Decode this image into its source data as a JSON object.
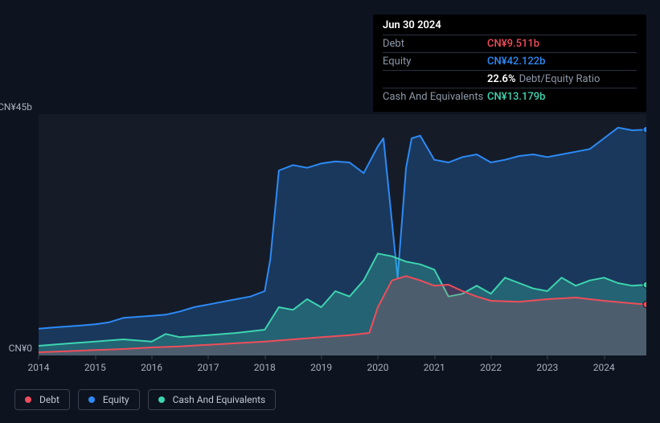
{
  "tooltip": {
    "date": "Jun 30 2024",
    "rows": [
      {
        "label": "Debt",
        "value": "CN¥9.511b",
        "color": "#ef4d5a"
      },
      {
        "label": "Equity",
        "value": "CN¥42.122b",
        "color": "#2d8af6"
      },
      {
        "ratio_value": "22.6%",
        "ratio_label": "Debt/Equity Ratio"
      },
      {
        "label": "Cash And Equivalents",
        "value": "CN¥13.179b",
        "color": "#3ed4b0"
      }
    ]
  },
  "chart": {
    "type": "area",
    "background_color": "#151c28",
    "page_background": "#0d1420",
    "y_axis": {
      "min": 0,
      "max": 45,
      "unit": "CN¥",
      "suffix": "b",
      "top_label": "CN¥45b",
      "bot_label": "CN¥0",
      "label_fontsize": 12,
      "label_color": "#a8b0bd"
    },
    "x_axis": {
      "min": 2014,
      "max": 2024.75,
      "ticks": [
        2014,
        2015,
        2016,
        2017,
        2018,
        2019,
        2020,
        2021,
        2022,
        2023,
        2024
      ],
      "label_fontsize": 12,
      "label_color": "#a8b0bd"
    },
    "series": [
      {
        "name": "Equity",
        "color": "#2d8af6",
        "fill_opacity": 0.25,
        "line_width": 2,
        "data": [
          [
            2014.0,
            5.0
          ],
          [
            2014.25,
            5.2
          ],
          [
            2014.5,
            5.4
          ],
          [
            2014.75,
            5.6
          ],
          [
            2015.0,
            5.8
          ],
          [
            2015.25,
            6.2
          ],
          [
            2015.5,
            7.0
          ],
          [
            2015.75,
            7.2
          ],
          [
            2016.0,
            7.4
          ],
          [
            2016.25,
            7.6
          ],
          [
            2016.5,
            8.2
          ],
          [
            2016.75,
            9.0
          ],
          [
            2017.0,
            9.5
          ],
          [
            2017.25,
            10.0
          ],
          [
            2017.5,
            10.5
          ],
          [
            2017.75,
            11.0
          ],
          [
            2018.0,
            12.0
          ],
          [
            2018.1,
            18.0
          ],
          [
            2018.25,
            34.5
          ],
          [
            2018.5,
            35.5
          ],
          [
            2018.75,
            35.0
          ],
          [
            2019.0,
            35.8
          ],
          [
            2019.25,
            36.2
          ],
          [
            2019.5,
            36.0
          ],
          [
            2019.75,
            34.0
          ],
          [
            2020.0,
            39.0
          ],
          [
            2020.1,
            40.5
          ],
          [
            2020.25,
            25.0
          ],
          [
            2020.35,
            14.5
          ],
          [
            2020.5,
            35.0
          ],
          [
            2020.6,
            40.5
          ],
          [
            2020.75,
            41.0
          ],
          [
            2021.0,
            36.5
          ],
          [
            2021.25,
            36.0
          ],
          [
            2021.5,
            37.0
          ],
          [
            2021.75,
            37.5
          ],
          [
            2022.0,
            36.0
          ],
          [
            2022.25,
            36.5
          ],
          [
            2022.5,
            37.2
          ],
          [
            2022.75,
            37.5
          ],
          [
            2023.0,
            37.0
          ],
          [
            2023.25,
            37.5
          ],
          [
            2023.5,
            38.0
          ],
          [
            2023.75,
            38.5
          ],
          [
            2024.0,
            40.5
          ],
          [
            2024.25,
            42.5
          ],
          [
            2024.5,
            42.0
          ],
          [
            2024.75,
            42.12
          ]
        ]
      },
      {
        "name": "Cash And Equivalents",
        "color": "#3ed4b0",
        "fill_opacity": 0.28,
        "line_width": 2,
        "data": [
          [
            2014.0,
            1.8
          ],
          [
            2014.5,
            2.2
          ],
          [
            2015.0,
            2.6
          ],
          [
            2015.5,
            3.0
          ],
          [
            2016.0,
            2.6
          ],
          [
            2016.25,
            4.0
          ],
          [
            2016.5,
            3.4
          ],
          [
            2017.0,
            3.8
          ],
          [
            2017.5,
            4.2
          ],
          [
            2018.0,
            4.8
          ],
          [
            2018.25,
            9.0
          ],
          [
            2018.5,
            8.5
          ],
          [
            2018.75,
            10.5
          ],
          [
            2019.0,
            9.0
          ],
          [
            2019.25,
            12.0
          ],
          [
            2019.5,
            11.0
          ],
          [
            2019.75,
            14.0
          ],
          [
            2020.0,
            19.0
          ],
          [
            2020.25,
            18.5
          ],
          [
            2020.5,
            17.5
          ],
          [
            2020.75,
            17.0
          ],
          [
            2021.0,
            16.0
          ],
          [
            2021.25,
            11.0
          ],
          [
            2021.5,
            11.5
          ],
          [
            2021.75,
            13.0
          ],
          [
            2022.0,
            11.5
          ],
          [
            2022.25,
            14.5
          ],
          [
            2022.5,
            13.5
          ],
          [
            2022.75,
            12.5
          ],
          [
            2023.0,
            12.0
          ],
          [
            2023.25,
            14.5
          ],
          [
            2023.5,
            13.0
          ],
          [
            2023.75,
            14.0
          ],
          [
            2024.0,
            14.5
          ],
          [
            2024.25,
            13.5
          ],
          [
            2024.5,
            13.0
          ],
          [
            2024.75,
            13.18
          ]
        ]
      },
      {
        "name": "Debt",
        "color": "#ef4d5a",
        "fill_opacity": 0.2,
        "line_width": 2,
        "data": [
          [
            2014.0,
            0.6
          ],
          [
            2014.5,
            0.8
          ],
          [
            2015.0,
            1.0
          ],
          [
            2015.5,
            1.2
          ],
          [
            2016.0,
            1.5
          ],
          [
            2016.5,
            1.7
          ],
          [
            2017.0,
            2.0
          ],
          [
            2017.5,
            2.3
          ],
          [
            2018.0,
            2.6
          ],
          [
            2018.5,
            3.0
          ],
          [
            2019.0,
            3.4
          ],
          [
            2019.5,
            3.8
          ],
          [
            2019.85,
            4.2
          ],
          [
            2020.0,
            9.0
          ],
          [
            2020.25,
            14.0
          ],
          [
            2020.5,
            14.8
          ],
          [
            2020.75,
            14.0
          ],
          [
            2021.0,
            13.0
          ],
          [
            2021.25,
            13.2
          ],
          [
            2021.5,
            12.0
          ],
          [
            2021.75,
            11.0
          ],
          [
            2022.0,
            10.2
          ],
          [
            2022.5,
            10.0
          ],
          [
            2023.0,
            10.5
          ],
          [
            2023.5,
            10.8
          ],
          [
            2024.0,
            10.2
          ],
          [
            2024.5,
            9.7
          ],
          [
            2024.75,
            9.51
          ]
        ]
      }
    ],
    "legend": {
      "items": [
        {
          "label": "Debt",
          "color": "#ef4d5a"
        },
        {
          "label": "Equity",
          "color": "#2d8af6"
        },
        {
          "label": "Cash And Equivalents",
          "color": "#3ed4b0"
        }
      ],
      "border_color": "#3a4250",
      "text_color": "#c0c8d4",
      "fontsize": 12
    },
    "end_markers": true,
    "end_marker_radius": 4
  }
}
